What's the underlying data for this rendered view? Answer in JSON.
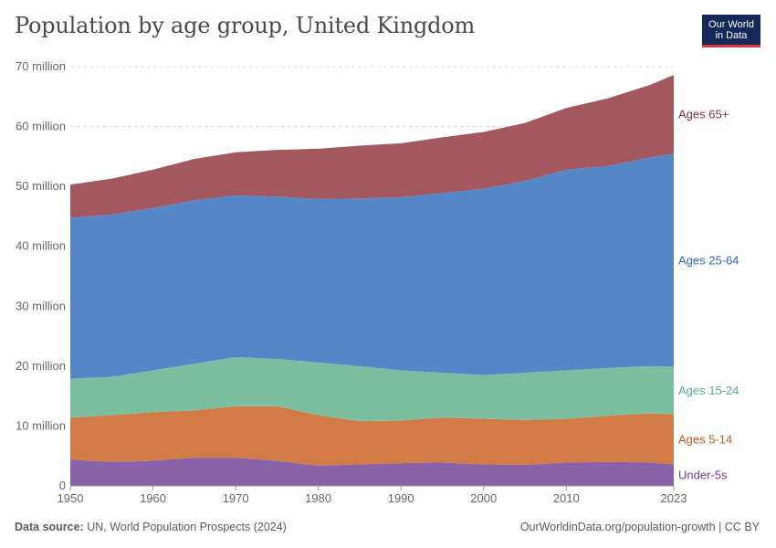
{
  "title": "Population by age group, United Kingdom",
  "logo": {
    "line1": "Our World",
    "line2": "in Data"
  },
  "footer": {
    "source_label": "Data source:",
    "source_text": "UN, World Population Prospects (2024)",
    "right_text": "OurWorldinData.org/population-growth | CC BY"
  },
  "chart_data": {
    "type": "area",
    "stacked": true,
    "x": [
      1950,
      1955,
      1960,
      1965,
      1970,
      1975,
      1980,
      1985,
      1990,
      1995,
      2000,
      2005,
      2010,
      2015,
      2020,
      2023
    ],
    "xticks": [
      1950,
      1960,
      1970,
      1980,
      1990,
      2000,
      2010,
      2023
    ],
    "yticks": [
      0,
      10,
      20,
      30,
      40,
      50,
      60,
      70
    ],
    "ytick_labels": [
      "0",
      "10 million",
      "20 million",
      "30 million",
      "40 million",
      "50 million",
      "60 million",
      "70 million"
    ],
    "ylim": [
      0,
      70
    ],
    "y_unit": "million",
    "grid": "horizontal dashed",
    "legend": "inline labels right",
    "series": [
      {
        "name": "Under-5s",
        "color": "#8a62aa",
        "label_color": "#6a3d9a",
        "values": [
          4.4,
          4.0,
          4.2,
          4.7,
          4.7,
          4.2,
          3.4,
          3.6,
          3.8,
          3.9,
          3.6,
          3.5,
          3.9,
          4.0,
          3.9,
          3.6
        ]
      },
      {
        "name": "Ages 5-14",
        "color": "#d27b47",
        "label_color": "#c05917",
        "values": [
          7.0,
          7.8,
          8.1,
          7.9,
          8.6,
          9.1,
          8.4,
          7.2,
          7.1,
          7.5,
          7.6,
          7.5,
          7.3,
          7.7,
          8.2,
          8.4
        ]
      },
      {
        "name": "Ages 15-24",
        "color": "#7cbfa0",
        "label_color": "#58ac8c",
        "values": [
          6.5,
          6.4,
          7.0,
          7.8,
          8.2,
          7.9,
          8.8,
          9.2,
          8.4,
          7.5,
          7.3,
          7.9,
          8.1,
          8.0,
          7.9,
          7.9
        ]
      },
      {
        "name": "Ages 25-64",
        "color": "#5587c8",
        "label_color": "#286bbb",
        "values": [
          26.9,
          27.1,
          27.1,
          27.3,
          27.0,
          27.1,
          27.3,
          28.0,
          28.9,
          30.0,
          31.1,
          32.0,
          33.5,
          33.7,
          34.8,
          35.6
        ]
      },
      {
        "name": "Ages 65+",
        "color": "#a2585e",
        "label_color": "#883039",
        "values": [
          5.5,
          6.0,
          6.4,
          6.9,
          7.2,
          7.8,
          8.4,
          8.8,
          9.0,
          9.3,
          9.5,
          9.7,
          10.3,
          11.3,
          12.1,
          13.1
        ]
      }
    ]
  }
}
